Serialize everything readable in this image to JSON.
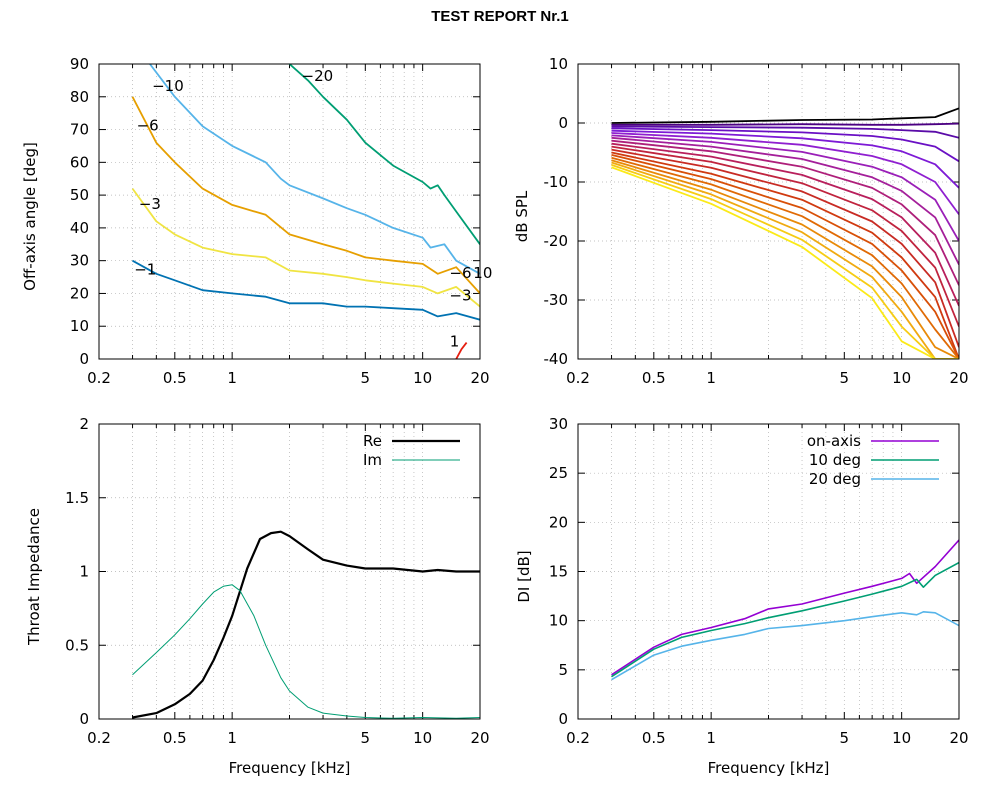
{
  "page": {
    "title": "TEST REPORT Nr.1"
  },
  "chart_data": [
    {
      "id": "polar-map",
      "type": "line",
      "title": "",
      "xlabel": "",
      "ylabel": "Off-axis angle [deg]",
      "xscale": "log",
      "xlim": [
        0.2,
        20
      ],
      "ylim": [
        0,
        90
      ],
      "xticks": [
        0.2,
        0.5,
        1,
        5,
        10,
        20
      ],
      "xticklabels": [
        "0.2",
        "0.5",
        "1",
        "5",
        "10",
        "20"
      ],
      "yticks": [
        0,
        10,
        20,
        30,
        40,
        50,
        60,
        70,
        80,
        90
      ],
      "yticklabels": [
        "0",
        "10",
        "20",
        "30",
        "40",
        "50",
        "60",
        "70",
        "80",
        "90"
      ],
      "grid": true,
      "series": [
        {
          "name": "−1",
          "color": "#0072b2",
          "x": [
            0.3,
            0.4,
            0.5,
            0.7,
            1,
            1.5,
            2,
            3,
            4,
            5,
            7,
            10,
            12,
            15,
            20
          ],
          "y": [
            30,
            26,
            24,
            21,
            20,
            19,
            17,
            17,
            16,
            16,
            15.5,
            15,
            13,
            14,
            12
          ]
        },
        {
          "name": "−3",
          "color": "#f0e442",
          "x": [
            0.3,
            0.4,
            0.5,
            0.7,
            1,
            1.5,
            2,
            3,
            4,
            5,
            7,
            10,
            12,
            15,
            20
          ],
          "y": [
            52,
            42,
            38,
            34,
            32,
            31,
            27,
            26,
            25,
            24,
            23,
            22,
            20,
            22,
            16
          ]
        },
        {
          "name": "−6",
          "color": "#e69f00",
          "x": [
            0.3,
            0.4,
            0.5,
            0.7,
            1,
            1.5,
            2,
            3,
            4,
            5,
            7,
            10,
            12,
            15,
            20
          ],
          "y": [
            80,
            66,
            60,
            52,
            47,
            44,
            38,
            35,
            33,
            31,
            30,
            29,
            26,
            28,
            20
          ]
        },
        {
          "name": "−10",
          "color": "#56b4e9",
          "x": [
            0.37,
            0.5,
            0.7,
            1,
            1.5,
            1.8,
            2,
            3,
            4,
            5,
            7,
            10,
            11,
            13,
            15,
            20
          ],
          "y": [
            90,
            80,
            71,
            65,
            60,
            55,
            53,
            49,
            46,
            44,
            40,
            37,
            34,
            35,
            30,
            26
          ]
        },
        {
          "name": "−20",
          "color": "#009e73",
          "x": [
            2,
            2.5,
            3,
            4,
            5,
            7,
            10,
            11,
            12,
            13,
            15,
            20
          ],
          "y": [
            90,
            85,
            80,
            73,
            66,
            59,
            54,
            52,
            53,
            50,
            45,
            35
          ]
        },
        {
          "name": "1",
          "color": "#e51e10",
          "x": [
            15,
            16,
            17
          ],
          "y": [
            0,
            3,
            5
          ]
        }
      ],
      "annotations": [
        {
          "text": "−10",
          "x": 0.46,
          "y": 83
        },
        {
          "text": "−20",
          "x": 2.8,
          "y": 86
        },
        {
          "text": "−6",
          "x": 0.36,
          "y": 71
        },
        {
          "text": "−3",
          "x": 0.37,
          "y": 47
        },
        {
          "text": "−1",
          "x": 0.35,
          "y": 27
        },
        {
          "text": "−6",
          "x": 15.8,
          "y": 26
        },
        {
          "text": "10",
          "x": 20.7,
          "y": 26
        },
        {
          "text": "−3",
          "x": 15.8,
          "y": 19
        },
        {
          "text": "1",
          "x": 14.7,
          "y": 5
        }
      ]
    },
    {
      "id": "spl-fan",
      "type": "line",
      "title": "",
      "xlabel": "",
      "ylabel": "dB SPL",
      "xscale": "log",
      "xlim": [
        0.2,
        20
      ],
      "ylim": [
        -40,
        10
      ],
      "xticks": [
        0.2,
        0.5,
        1,
        5,
        10,
        20
      ],
      "xticklabels": [
        "0.2",
        "0.5",
        "1",
        "5",
        "10",
        "20"
      ],
      "yticks": [
        -40,
        -30,
        -20,
        -10,
        0,
        10
      ],
      "yticklabels": [
        "-40",
        "-30",
        "-20",
        "-10",
        "0",
        "10"
      ],
      "grid": true,
      "series": [
        {
          "color": "#000000",
          "x": [
            0.3,
            1,
            3,
            7,
            10,
            15,
            20
          ],
          "y": [
            0,
            0.2,
            0.5,
            0.6,
            0.8,
            1,
            2.5
          ]
        },
        {
          "color": "#4b0082",
          "x": [
            0.3,
            1,
            3,
            7,
            10,
            15,
            20
          ],
          "y": [
            -0.3,
            -0.3,
            -0.2,
            -0.3,
            -0.3,
            -0.2,
            -0.1
          ]
        },
        {
          "color": "#5a0ba8",
          "x": [
            0.3,
            1,
            3,
            7,
            10,
            15,
            20
          ],
          "y": [
            -0.6,
            -0.7,
            -0.8,
            -1,
            -1.2,
            -1.5,
            -2.5
          ]
        },
        {
          "color": "#6a10c4",
          "x": [
            0.3,
            1,
            3,
            7,
            10,
            15,
            20
          ],
          "y": [
            -0.9,
            -1.2,
            -1.6,
            -2.2,
            -2.8,
            -4,
            -6.5
          ]
        },
        {
          "color": "#7d1ad6",
          "x": [
            0.3,
            1,
            3,
            7,
            10,
            15,
            20
          ],
          "y": [
            -1.3,
            -1.8,
            -2.6,
            -3.8,
            -4.8,
            -7,
            -11
          ]
        },
        {
          "color": "#8f1fd0",
          "x": [
            0.3,
            1,
            3,
            7,
            10,
            15,
            20
          ],
          "y": [
            -1.7,
            -2.5,
            -3.7,
            -5.6,
            -7,
            -10,
            -15.5
          ]
        },
        {
          "color": "#9a1fb8",
          "x": [
            0.3,
            1,
            3,
            7,
            10,
            15,
            20
          ],
          "y": [
            -2.1,
            -3.2,
            -4.9,
            -7.4,
            -9.2,
            -13,
            -20
          ]
        },
        {
          "color": "#a41f9a",
          "x": [
            0.3,
            1,
            3,
            7,
            10,
            15,
            20
          ],
          "y": [
            -2.5,
            -4,
            -6.1,
            -9.2,
            -11.5,
            -16,
            -24
          ]
        },
        {
          "color": "#ae1f7a",
          "x": [
            0.3,
            1,
            3,
            7,
            10,
            15,
            20
          ],
          "y": [
            -3,
            -4.8,
            -7.4,
            -11,
            -13.8,
            -19,
            -27.5
          ]
        },
        {
          "color": "#b81f5c",
          "x": [
            0.3,
            1,
            3,
            7,
            10,
            15,
            20
          ],
          "y": [
            -3.5,
            -5.7,
            -8.8,
            -12.9,
            -16,
            -22,
            -31
          ]
        },
        {
          "color": "#c0243e",
          "x": [
            0.3,
            1,
            3,
            7,
            10,
            15,
            20
          ],
          "y": [
            -4,
            -6.6,
            -10.2,
            -14.8,
            -18.3,
            -24.5,
            -34.5
          ]
        },
        {
          "color": "#c82b24",
          "x": [
            0.3,
            1,
            3,
            7,
            10,
            15,
            20
          ],
          "y": [
            -4.5,
            -7.6,
            -11.6,
            -16.7,
            -20.5,
            -27,
            -38
          ]
        },
        {
          "color": "#d03a10",
          "x": [
            0.3,
            1,
            3,
            7,
            10,
            15,
            20
          ],
          "y": [
            -5,
            -8.6,
            -13,
            -18.6,
            -22.8,
            -29.5,
            -40
          ]
        },
        {
          "color": "#d85008",
          "x": [
            0.3,
            1,
            3,
            7,
            10,
            15,
            20
          ],
          "y": [
            -5.4,
            -9.5,
            -14.4,
            -20.5,
            -25,
            -32,
            -40
          ]
        },
        {
          "color": "#e06a05",
          "x": [
            0.3,
            1,
            3,
            7,
            10,
            15,
            20
          ],
          "y": [
            -5.9,
            -10.4,
            -15.8,
            -22.4,
            -27.2,
            -35,
            -40
          ]
        },
        {
          "color": "#e88a08",
          "x": [
            0.3,
            1,
            3,
            7,
            10,
            15,
            20
          ],
          "y": [
            -6.3,
            -11.3,
            -17.2,
            -24.3,
            -29.5,
            -38,
            -40
          ]
        },
        {
          "color": "#f0aa10",
          "x": [
            0.3,
            1,
            3,
            7,
            10,
            15,
            20
          ],
          "y": [
            -6.7,
            -12.1,
            -18.5,
            -26.1,
            -32,
            -40,
            -40
          ]
        },
        {
          "color": "#f6cc14",
          "x": [
            0.3,
            1,
            3,
            7,
            10,
            15,
            20
          ],
          "y": [
            -7.1,
            -12.9,
            -19.8,
            -27.9,
            -34.5,
            -40,
            -40
          ]
        },
        {
          "color": "#fbea18",
          "x": [
            0.3,
            1,
            3,
            7,
            10,
            15,
            20
          ],
          "y": [
            -7.5,
            -13.7,
            -21,
            -29.7,
            -37,
            -40,
            -40
          ]
        }
      ]
    },
    {
      "id": "throat-impedance",
      "type": "line",
      "title": "",
      "xlabel": "Frequency [kHz]",
      "ylabel": "Throat Impedance",
      "xscale": "log",
      "xlim": [
        0.2,
        20
      ],
      "ylim": [
        0,
        2
      ],
      "xticks": [
        0.2,
        0.5,
        1,
        5,
        10,
        20
      ],
      "xticklabels": [
        "0.2",
        "0.5",
        "1",
        "5",
        "10",
        "20"
      ],
      "yticks": [
        0,
        0.5,
        1,
        1.5,
        2
      ],
      "yticklabels": [
        "0",
        "0.5",
        "1",
        "1.5",
        "2"
      ],
      "grid": true,
      "legend_position": "top-right",
      "series": [
        {
          "name": "Re",
          "color": "#000000",
          "width": 2.2,
          "x": [
            0.3,
            0.4,
            0.5,
            0.6,
            0.7,
            0.8,
            0.9,
            1,
            1.2,
            1.4,
            1.6,
            1.8,
            2,
            2.5,
            3,
            4,
            5,
            7,
            10,
            12,
            15,
            20
          ],
          "y": [
            0.01,
            0.04,
            0.1,
            0.17,
            0.26,
            0.4,
            0.55,
            0.7,
            1.02,
            1.22,
            1.26,
            1.27,
            1.24,
            1.15,
            1.08,
            1.04,
            1.02,
            1.02,
            1.0,
            1.01,
            1.0,
            1.0
          ]
        },
        {
          "name": "Im",
          "color": "#009e73",
          "width": 1,
          "x": [
            0.3,
            0.4,
            0.5,
            0.6,
            0.7,
            0.8,
            0.9,
            1,
            1.1,
            1.3,
            1.5,
            1.8,
            2,
            2.5,
            3,
            4,
            5,
            7,
            10,
            15,
            20
          ],
          "y": [
            0.3,
            0.45,
            0.57,
            0.68,
            0.78,
            0.86,
            0.9,
            0.91,
            0.87,
            0.7,
            0.5,
            0.28,
            0.19,
            0.08,
            0.04,
            0.02,
            0.01,
            0.005,
            0.01,
            0.005,
            0.01
          ]
        }
      ]
    },
    {
      "id": "directivity-index",
      "type": "line",
      "title": "",
      "xlabel": "Frequency [kHz]",
      "ylabel": "DI [dB]",
      "xscale": "log",
      "xlim": [
        0.2,
        20
      ],
      "ylim": [
        0,
        30
      ],
      "xticks": [
        0.2,
        0.5,
        1,
        5,
        10,
        20
      ],
      "xticklabels": [
        "0.2",
        "0.5",
        "1",
        "5",
        "10",
        "20"
      ],
      "yticks": [
        0,
        5,
        10,
        15,
        20,
        25,
        30
      ],
      "yticklabels": [
        "0",
        "5",
        "10",
        "15",
        "20",
        "25",
        "30"
      ],
      "grid": true,
      "legend_position": "top-right",
      "series": [
        {
          "name": "on-axis",
          "color": "#9400d3",
          "width": 1.6,
          "x": [
            0.3,
            0.5,
            0.7,
            1,
            1.5,
            2,
            3,
            5,
            7,
            10,
            11,
            12,
            15,
            20
          ],
          "y": [
            4.5,
            7.3,
            8.6,
            9.3,
            10.2,
            11.2,
            11.7,
            12.8,
            13.5,
            14.3,
            14.8,
            13.8,
            15.5,
            18.2
          ]
        },
        {
          "name": "10 deg",
          "color": "#009e73",
          "width": 1.6,
          "x": [
            0.3,
            0.5,
            0.7,
            1,
            1.5,
            2,
            3,
            5,
            7,
            10,
            12,
            13,
            15,
            20
          ],
          "y": [
            4.3,
            7.1,
            8.3,
            9.0,
            9.7,
            10.3,
            11.0,
            12.0,
            12.7,
            13.5,
            14.2,
            13.4,
            14.6,
            15.9
          ]
        },
        {
          "name": "20 deg",
          "color": "#56b4e9",
          "width": 1.6,
          "x": [
            0.3,
            0.5,
            0.7,
            1,
            1.5,
            2,
            3,
            5,
            7,
            10,
            12,
            13,
            15,
            20
          ],
          "y": [
            4.0,
            6.5,
            7.4,
            8.0,
            8.6,
            9.2,
            9.5,
            10.0,
            10.4,
            10.8,
            10.6,
            10.9,
            10.8,
            9.5
          ]
        }
      ]
    }
  ]
}
